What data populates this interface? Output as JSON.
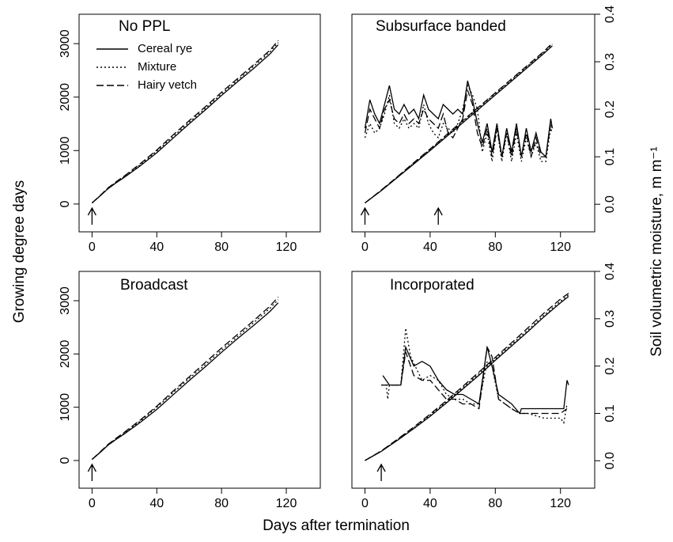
{
  "xlabel": "Days after termination",
  "ylabel": "Growing degree days",
  "y2label": "Soil volumetric moisture, m m⁻¹",
  "chart_data": [
    {
      "type": "line",
      "title": "No PPL",
      "legend": "top-left",
      "xlim": [
        -8,
        141
      ],
      "xticks": [
        0,
        40,
        80,
        120
      ],
      "ylim": [
        -520,
        3550
      ],
      "yticks": [
        0,
        1000,
        2000,
        3000
      ],
      "arrows": [
        0
      ],
      "x": [
        0,
        5,
        10,
        15,
        20,
        30,
        40,
        50,
        60,
        70,
        80,
        90,
        100,
        110,
        115
      ],
      "series": [
        {
          "name": "Cereal rye",
          "color": "#000000",
          "dash": "solid",
          "values": [
            20,
            150,
            290,
            400,
            500,
            720,
            960,
            1230,
            1500,
            1760,
            2030,
            2290,
            2540,
            2810,
            2980
          ]
        },
        {
          "name": "Mixture",
          "color": "#000000",
          "dash": "dotted",
          "values": [
            20,
            155,
            300,
            410,
            515,
            740,
            990,
            1260,
            1530,
            1790,
            2060,
            2320,
            2580,
            2850,
            3020
          ]
        },
        {
          "name": "Hairy vetch",
          "color": "#000000",
          "dash": "dashed",
          "values": [
            20,
            160,
            305,
            420,
            525,
            760,
            1010,
            1290,
            1560,
            1820,
            2090,
            2350,
            2610,
            2880,
            3060
          ]
        }
      ]
    },
    {
      "type": "line",
      "title": "Subsurface banded",
      "xlim": [
        -8,
        141
      ],
      "xticks": [
        0,
        40,
        80,
        120
      ],
      "ylim": [
        -520,
        3550
      ],
      "y2lim": [
        -0.058,
        0.4
      ],
      "y2ticks": [
        {
          "value": 0,
          "label": "0.0"
        },
        0.1,
        0.2,
        0.3,
        0.4
      ],
      "arrows": [
        0,
        45
      ],
      "x": [
        0,
        10,
        20,
        30,
        40,
        50,
        60,
        70,
        80,
        90,
        100,
        110,
        115
      ],
      "series": [
        {
          "name": "Cereal rye",
          "color": "#000000",
          "dash": "solid",
          "values": [
            20,
            250,
            500,
            750,
            1000,
            1260,
            1520,
            1780,
            2040,
            2300,
            2560,
            2820,
            2960
          ]
        },
        {
          "name": "Mixture",
          "color": "#000000",
          "dash": "dotted",
          "values": [
            20,
            255,
            510,
            765,
            1020,
            1280,
            1545,
            1805,
            2065,
            2325,
            2585,
            2845,
            2990
          ]
        },
        {
          "name": "Hairy vetch",
          "color": "#000000",
          "dash": "dashed",
          "values": [
            20,
            260,
            515,
            775,
            1030,
            1295,
            1560,
            1820,
            2080,
            2340,
            2600,
            2860,
            3010
          ]
        },
        {
          "name": "Cereal rye",
          "color": "#000000",
          "dash": "solid",
          "axis": "y2",
          "x": [
            0,
            3,
            6,
            9,
            12,
            15,
            18,
            21,
            24,
            27,
            30,
            33,
            36,
            39,
            42,
            45,
            48,
            51,
            54,
            57,
            60,
            63,
            66,
            69,
            72,
            75,
            78,
            81,
            84,
            87,
            90,
            93,
            96,
            99,
            102,
            105,
            108,
            111,
            114,
            115
          ],
          "values": [
            0.16,
            0.22,
            0.19,
            0.17,
            0.21,
            0.25,
            0.2,
            0.19,
            0.21,
            0.19,
            0.2,
            0.18,
            0.23,
            0.2,
            0.19,
            0.18,
            0.21,
            0.2,
            0.19,
            0.2,
            0.19,
            0.26,
            0.22,
            0.17,
            0.13,
            0.17,
            0.11,
            0.17,
            0.1,
            0.16,
            0.11,
            0.17,
            0.1,
            0.16,
            0.11,
            0.15,
            0.11,
            0.1,
            0.18,
            0.16
          ]
        },
        {
          "name": "Mixture",
          "color": "#000000",
          "dash": "dotted",
          "axis": "y2",
          "x": [
            0,
            3,
            6,
            9,
            12,
            15,
            18,
            21,
            24,
            27,
            30,
            33,
            36,
            39,
            42,
            45,
            48,
            51,
            54,
            57,
            60,
            63,
            66,
            69,
            72,
            75,
            78,
            81,
            84,
            87,
            90,
            93,
            96,
            99,
            102,
            105,
            108,
            111,
            114,
            115
          ],
          "values": [
            0.14,
            0.17,
            0.15,
            0.16,
            0.19,
            0.23,
            0.17,
            0.16,
            0.18,
            0.16,
            0.17,
            0.16,
            0.21,
            0.17,
            0.15,
            0.14,
            0.17,
            0.16,
            0.15,
            0.17,
            0.2,
            0.25,
            0.23,
            0.2,
            0.11,
            0.15,
            0.09,
            0.16,
            0.09,
            0.15,
            0.09,
            0.15,
            0.09,
            0.14,
            0.1,
            0.13,
            0.09,
            0.09,
            0.16,
            0.15
          ]
        },
        {
          "name": "Hairy vetch",
          "color": "#000000",
          "dash": "dashed",
          "axis": "y2",
          "x": [
            0,
            3,
            6,
            9,
            12,
            15,
            18,
            21,
            24,
            27,
            30,
            33,
            36,
            39,
            42,
            45,
            48,
            51,
            54,
            57,
            60,
            63,
            66,
            69,
            72,
            75,
            78,
            81,
            84,
            87,
            90,
            93,
            96,
            99,
            102,
            105,
            108,
            111,
            114,
            115
          ],
          "values": [
            0.15,
            0.2,
            0.18,
            0.16,
            0.2,
            0.22,
            0.18,
            0.17,
            0.19,
            0.17,
            0.18,
            0.17,
            0.2,
            0.18,
            0.17,
            0.16,
            0.19,
            0.15,
            0.14,
            0.16,
            0.18,
            0.24,
            0.21,
            0.15,
            0.12,
            0.16,
            0.1,
            0.16,
            0.1,
            0.15,
            0.1,
            0.16,
            0.1,
            0.15,
            0.1,
            0.14,
            0.1,
            0.1,
            0.17,
            0.16
          ]
        }
      ]
    },
    {
      "type": "line",
      "title": "Broadcast",
      "xlim": [
        -8,
        141
      ],
      "xticks": [
        0,
        40,
        80,
        120
      ],
      "ylim": [
        -520,
        3550
      ],
      "yticks": [
        0,
        1000,
        2000,
        3000
      ],
      "arrows": [
        0
      ],
      "x": [
        0,
        5,
        10,
        15,
        20,
        30,
        40,
        50,
        60,
        70,
        80,
        90,
        100,
        110,
        115
      ],
      "series": [
        {
          "name": "Cereal rye",
          "color": "#000000",
          "dash": "solid",
          "values": [
            20,
            150,
            290,
            400,
            500,
            720,
            960,
            1230,
            1500,
            1760,
            2030,
            2290,
            2540,
            2800,
            2960
          ]
        },
        {
          "name": "Mixture",
          "color": "#000000",
          "dash": "dotted",
          "values": [
            20,
            155,
            300,
            410,
            515,
            745,
            1000,
            1270,
            1540,
            1800,
            2070,
            2330,
            2590,
            2860,
            3020
          ]
        },
        {
          "name": "Hairy vetch",
          "color": "#000000",
          "dash": "dashed",
          "values": [
            20,
            160,
            305,
            420,
            530,
            765,
            1020,
            1300,
            1570,
            1840,
            2110,
            2370,
            2630,
            2900,
            3070
          ]
        }
      ]
    },
    {
      "type": "line",
      "title": "Incorporated",
      "xlim": [
        -8,
        141
      ],
      "xticks": [
        0,
        40,
        80,
        120
      ],
      "ylim": [
        -520,
        3550
      ],
      "y2lim": [
        -0.058,
        0.4
      ],
      "y2ticks": [
        {
          "value": 0,
          "label": "0.0"
        },
        0.1,
        0.2,
        0.3,
        0.4
      ],
      "arrows": [
        10
      ],
      "x": [
        0,
        10,
        20,
        30,
        40,
        50,
        60,
        70,
        80,
        90,
        100,
        110,
        120,
        125
      ],
      "series": [
        {
          "name": "Cereal rye",
          "color": "#000000",
          "dash": "solid",
          "values": [
            0,
            170,
            380,
            600,
            830,
            1080,
            1340,
            1600,
            1880,
            2150,
            2420,
            2700,
            2960,
            3080
          ]
        },
        {
          "name": "Mixture",
          "color": "#000000",
          "dash": "dotted",
          "values": [
            0,
            175,
            390,
            615,
            850,
            1100,
            1365,
            1630,
            1905,
            2180,
            2450,
            2730,
            2990,
            3110
          ]
        },
        {
          "name": "Hairy vetch",
          "color": "#000000",
          "dash": "dashed",
          "values": [
            0,
            180,
            400,
            630,
            870,
            1125,
            1390,
            1660,
            1935,
            2210,
            2490,
            2770,
            3030,
            3140
          ]
        },
        {
          "name": "Cereal rye",
          "color": "#000000",
          "dash": "solid",
          "axis": "y2",
          "x": [
            11,
            15,
            22,
            25,
            30,
            35,
            40,
            45,
            50,
            55,
            60,
            65,
            70,
            75,
            78,
            82,
            90,
            95,
            96,
            100,
            110,
            122,
            124,
            125
          ],
          "values": [
            0.18,
            0.16,
            0.16,
            0.24,
            0.2,
            0.21,
            0.2,
            0.17,
            0.15,
            0.14,
            0.14,
            0.13,
            0.12,
            0.24,
            0.2,
            0.14,
            0.12,
            0.1,
            0.11,
            0.11,
            0.11,
            0.11,
            0.17,
            0.16
          ]
        },
        {
          "name": "Mixture",
          "color": "#000000",
          "dash": "dotted",
          "axis": "y2",
          "x": [
            10,
            13,
            14,
            15,
            22,
            25,
            28,
            35,
            40,
            45,
            50,
            55,
            60,
            65,
            70,
            75,
            78,
            82,
            90,
            95,
            100,
            110,
            120,
            122,
            124
          ],
          "values": [
            0.16,
            0.16,
            0.13,
            0.16,
            0.16,
            0.28,
            0.22,
            0.17,
            0.18,
            0.17,
            0.14,
            0.13,
            0.13,
            0.12,
            0.12,
            0.21,
            0.2,
            0.13,
            0.11,
            0.1,
            0.1,
            0.09,
            0.09,
            0.08,
            0.12
          ]
        },
        {
          "name": "Hairy vetch",
          "color": "#000000",
          "dash": "dashed",
          "axis": "y2",
          "x": [
            10,
            22,
            25,
            30,
            35,
            40,
            45,
            50,
            55,
            60,
            65,
            70,
            75,
            78,
            82,
            90,
            95,
            100,
            110,
            120,
            124
          ],
          "values": [
            0.16,
            0.16,
            0.23,
            0.18,
            0.17,
            0.17,
            0.15,
            0.13,
            0.13,
            0.12,
            0.12,
            0.11,
            0.24,
            0.22,
            0.13,
            0.11,
            0.1,
            0.1,
            0.1,
            0.1,
            0.11
          ]
        }
      ]
    }
  ]
}
